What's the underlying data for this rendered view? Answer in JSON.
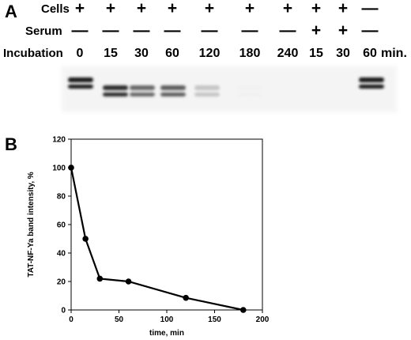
{
  "panel_a": {
    "letter": "A",
    "rows": [
      {
        "label": "Cells",
        "values": [
          "+",
          "+",
          "+",
          "+",
          "+",
          "+",
          "+",
          "+",
          "+",
          "—"
        ]
      },
      {
        "label": "Serum",
        "values": [
          "—",
          "—",
          "—",
          "—",
          "—",
          "—",
          "—",
          "+",
          "+",
          "—"
        ]
      },
      {
        "label": "Incubation",
        "values": [
          "0",
          "15",
          "30",
          "60",
          "120",
          "180",
          "240",
          "15",
          "30",
          "60"
        ],
        "unit": "min."
      }
    ],
    "band_intensity": [
      1.0,
      0.9,
      0.65,
      0.7,
      0.25,
      0.06,
      0.0,
      0.0,
      0.0,
      1.0
    ]
  },
  "panel_b": {
    "letter": "B",
    "chart_data": {
      "type": "line",
      "xlabel": "time, min",
      "ylabel": "TAT-NF-Ya band intensity, %",
      "xlim": [
        0,
        200
      ],
      "ylim": [
        0,
        120
      ],
      "xticks": [
        0,
        50,
        100,
        150,
        200
      ],
      "yticks": [
        0,
        20,
        40,
        60,
        80,
        100,
        120
      ],
      "grid": false,
      "series": [
        {
          "x": [
            0,
            15,
            30,
            60,
            120,
            180
          ],
          "y": [
            100,
            50,
            22,
            20,
            8.5,
            0
          ]
        }
      ]
    }
  }
}
